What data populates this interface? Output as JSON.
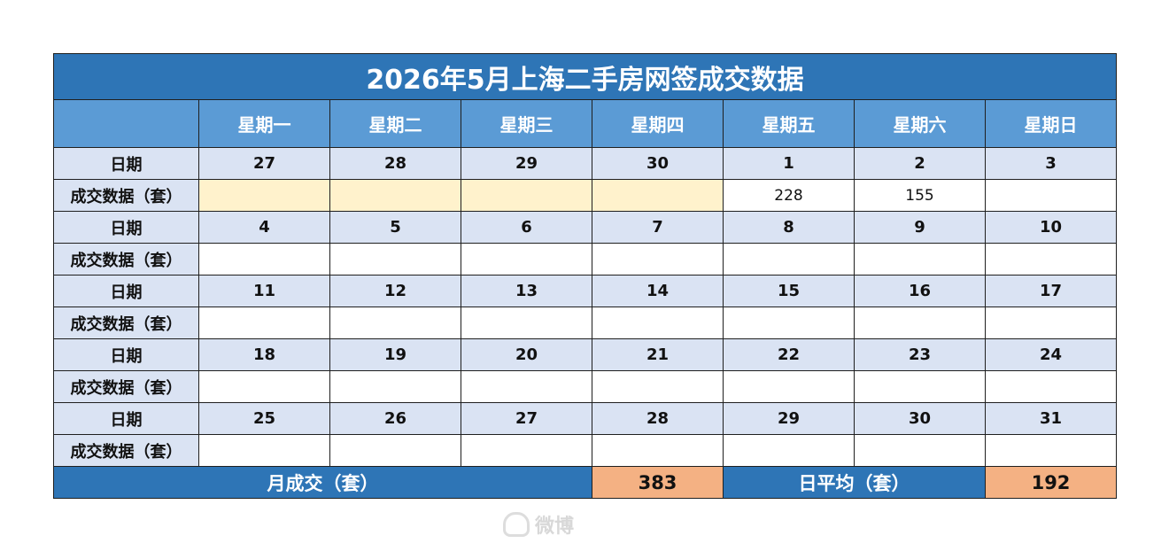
{
  "title": "2026年5月上海二手房网签成交数据",
  "header": {
    "corner": "",
    "weekdays": [
      "星期一",
      "星期二",
      "星期三",
      "星期四",
      "星期五",
      "星期六",
      "星期日"
    ]
  },
  "labels": {
    "date": "日期",
    "sales": "成交数据（套）"
  },
  "weeks": [
    {
      "dates": [
        "27",
        "28",
        "29",
        "30",
        "1",
        "2",
        "3"
      ],
      "sales": [
        "",
        "",
        "",
        "",
        "228",
        "155",
        ""
      ],
      "prev_month_cells": [
        0,
        1,
        2,
        3
      ]
    },
    {
      "dates": [
        "4",
        "5",
        "6",
        "7",
        "8",
        "9",
        "10"
      ],
      "sales": [
        "",
        "",
        "",
        "",
        "",
        "",
        ""
      ],
      "prev_month_cells": []
    },
    {
      "dates": [
        "11",
        "12",
        "13",
        "14",
        "15",
        "16",
        "17"
      ],
      "sales": [
        "",
        "",
        "",
        "",
        "",
        "",
        ""
      ],
      "prev_month_cells": []
    },
    {
      "dates": [
        "18",
        "19",
        "20",
        "21",
        "22",
        "23",
        "24"
      ],
      "sales": [
        "",
        "",
        "",
        "",
        "",
        "",
        ""
      ],
      "prev_month_cells": []
    },
    {
      "dates": [
        "25",
        "26",
        "27",
        "28",
        "29",
        "30",
        "31"
      ],
      "sales": [
        "",
        "",
        "",
        "",
        "",
        "",
        ""
      ],
      "prev_month_cells": []
    }
  ],
  "footer": {
    "monthly_label": "月成交（套）",
    "monthly_value": "383",
    "daily_avg_label": "日平均（套）",
    "daily_avg_value": "192"
  },
  "colors": {
    "title_bg": "#2e75b6",
    "header_bg": "#5b9bd5",
    "date_row_bg": "#dae3f3",
    "prev_month_bg": "#fff2cc",
    "total_value_bg": "#f4b183"
  },
  "watermark": {
    "icon": "weibo-logo-icon",
    "text": "微博"
  }
}
